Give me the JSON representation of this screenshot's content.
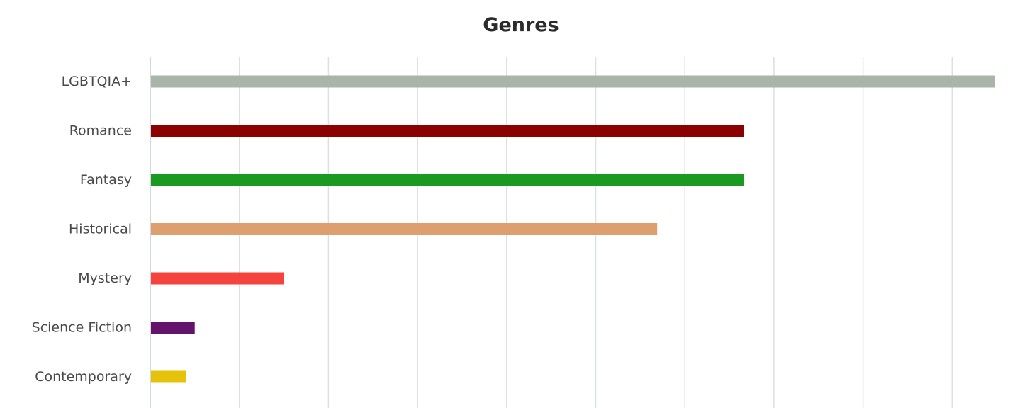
{
  "chart_data": {
    "type": "bar",
    "orientation": "horizontal",
    "title": "Genres",
    "xlabel": "",
    "ylabel": "",
    "categories": [
      "LGBTQIA+",
      "Romance",
      "Fantasy",
      "Historical",
      "Mystery",
      "Science Fiction",
      "Contemporary"
    ],
    "values": [
      19,
      13.35,
      13.35,
      11.4,
      3,
      1,
      0.8
    ],
    "colors": [
      "#a9b5a8",
      "#8b0000",
      "#1b9a21",
      "#dd9f6e",
      "#f5443d",
      "#65146b",
      "#e6c20a"
    ],
    "xlim": [
      0,
      19
    ],
    "grid": true,
    "legend": "none"
  }
}
